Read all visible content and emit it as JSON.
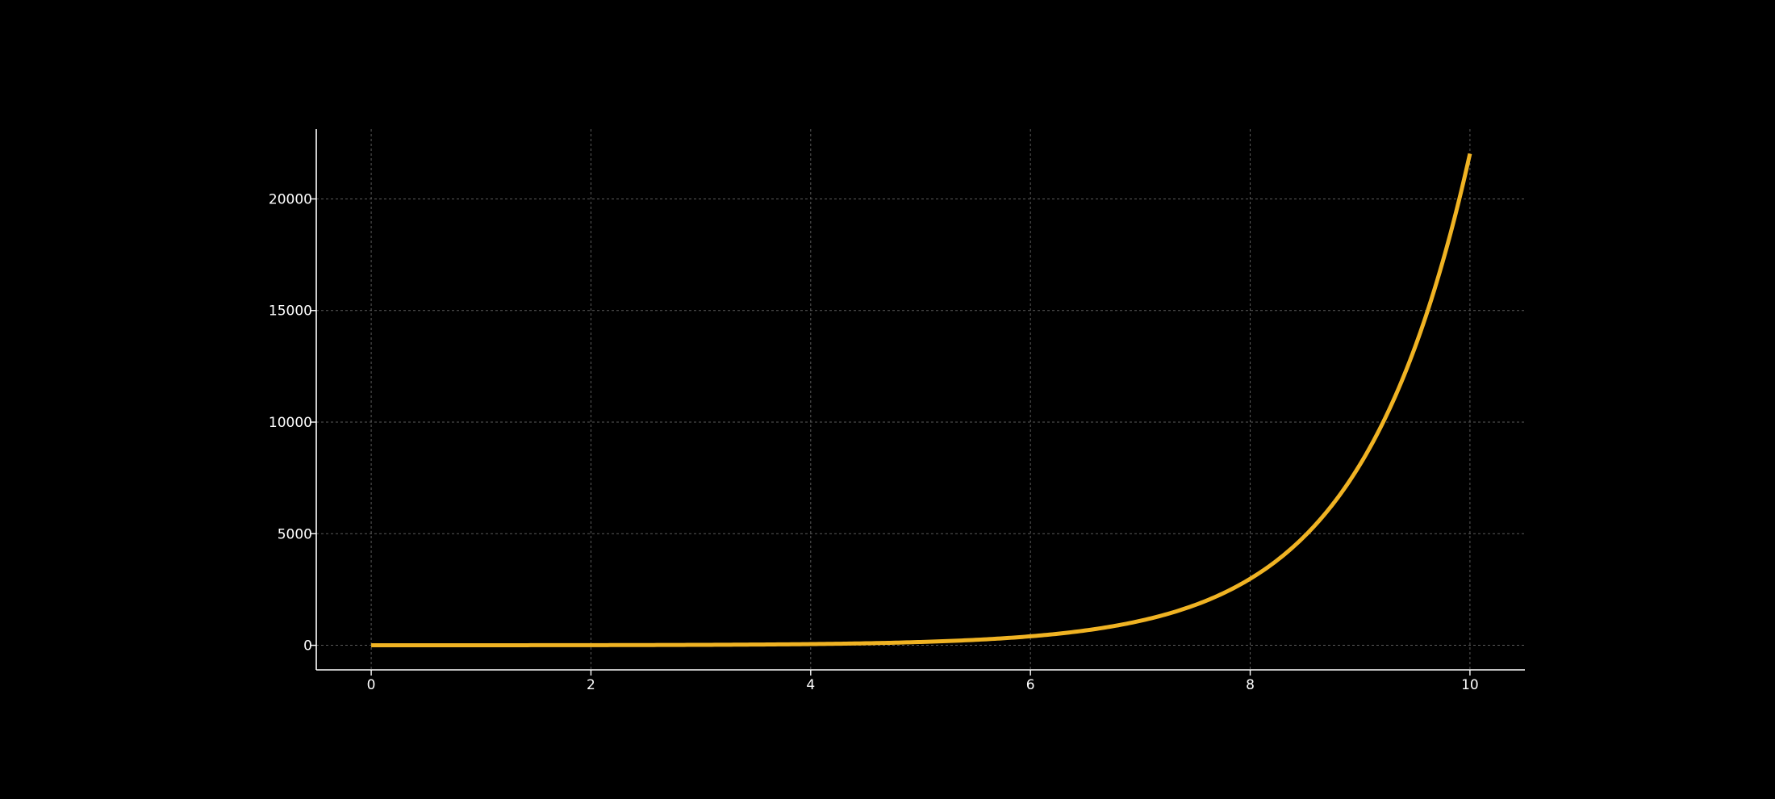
{
  "chart_data": {
    "type": "line",
    "title": "",
    "xlabel": "",
    "ylabel": "",
    "xlim": [
      -0.5,
      10.5
    ],
    "ylim": [
      -1101,
      23127
    ],
    "x_ticks": [
      0,
      2,
      4,
      6,
      8,
      10
    ],
    "y_ticks": [
      0,
      5000,
      10000,
      15000,
      20000
    ],
    "x_tick_labels": [
      "0",
      "2",
      "4",
      "6",
      "8",
      "10"
    ],
    "y_tick_labels": [
      "0",
      "5000",
      "10000",
      "15000",
      "20000"
    ],
    "grid": true,
    "legend": "none",
    "background_color": "#000000",
    "series": [
      {
        "color": "#f0b323",
        "x": [
          0,
          0.5,
          1,
          1.5,
          2,
          2.5,
          3,
          3.5,
          4,
          4.5,
          5,
          5.5,
          6,
          6.5,
          7,
          7.25,
          7.5,
          7.75,
          8,
          8.25,
          8.5,
          8.75,
          9,
          9.25,
          9.5,
          9.75,
          10
        ],
        "y": [
          1,
          1.6,
          2.7,
          4.5,
          7.4,
          12.2,
          20.1,
          33.1,
          54.6,
          90,
          148.4,
          244.7,
          403.4,
          665.1,
          1096.6,
          1408.1,
          1808,
          2321.6,
          2981,
          3827.6,
          4914.8,
          6310.7,
          8103.1,
          10404.6,
          13359.7,
          17154.2,
          22026.5
        ]
      }
    ]
  }
}
